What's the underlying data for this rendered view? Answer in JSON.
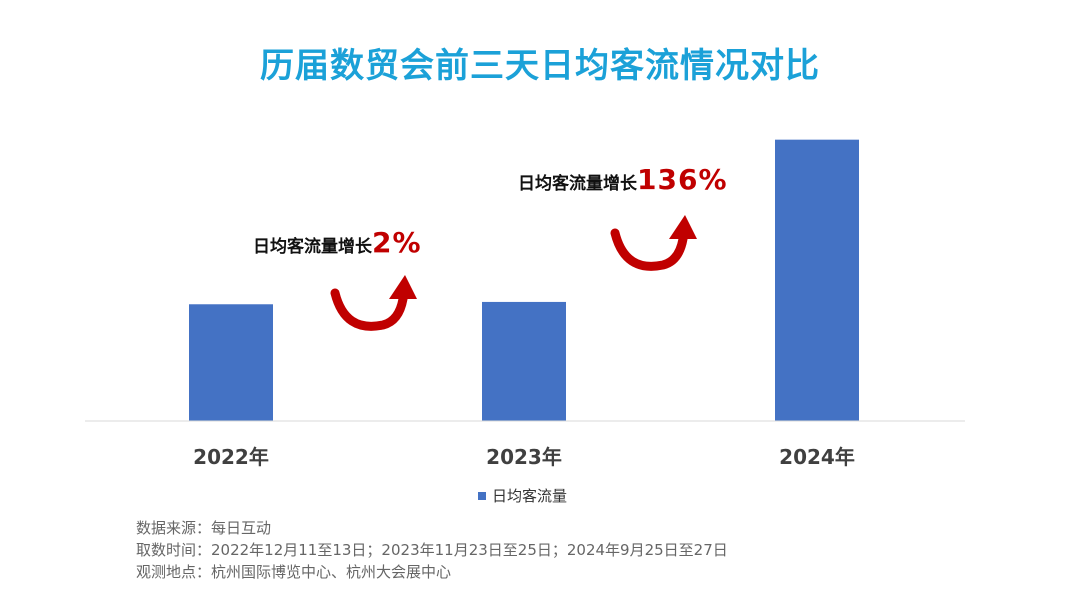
{
  "title": "历届数贸会前三天日均客流情况对比",
  "chart_data": {
    "type": "bar",
    "categories": [
      "2022年",
      "2023年",
      "2024年"
    ],
    "series": [
      {
        "name": "日均客流量",
        "values": [
          1.0,
          1.02,
          2.41
        ]
      }
    ],
    "ylim": [
      0,
      2.45
    ],
    "grid": false,
    "legend": "bottom",
    "bar_color": "#4472c4"
  },
  "annotations": [
    {
      "label": "日均客流量增长",
      "value": "2%"
    },
    {
      "label": "日均客流量增长",
      "value": "136%"
    }
  ],
  "colors": {
    "title": "#1ba1d8",
    "highlight": "#c00000",
    "bar": "#4472c4"
  },
  "footer": {
    "source": "数据来源：每日互动",
    "period": "取数时间：2022年12月11至13日；2023年11月23日至25日；2024年9月25日至27日",
    "location": "观测地点：杭州国际博览中心、杭州大会展中心"
  }
}
